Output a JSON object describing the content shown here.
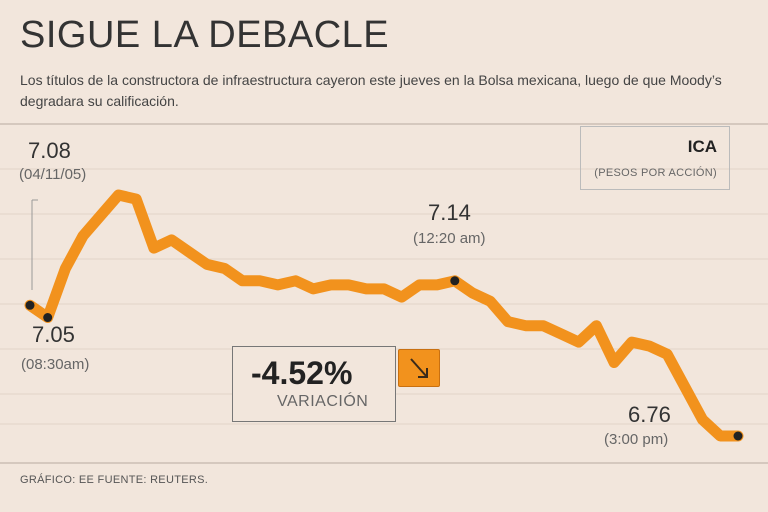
{
  "header": {
    "title": "SIGUE LA DEBACLE",
    "subtitle": "Los títulos de la constructora de infraestructura cayeron este jueves en la Bolsa mexicana, luego de que Moody’s degradara su calificación."
  },
  "legend": {
    "name": "ICA",
    "unit": "(PESOS POR ACCIÓN)"
  },
  "annotations": [
    {
      "value": "7.08",
      "time": "(04/11/05)"
    },
    {
      "value": "7.05",
      "time": "(08:30am)"
    },
    {
      "value": "7.14",
      "time": "(12:20 am)"
    },
    {
      "value": "6.76",
      "time": "(3:00 pm)"
    }
  ],
  "variation": {
    "percent": "-4.52%",
    "label": "VARIACIÓN"
  },
  "footer": "GRÁFICO: EE  FUENTE: REUTERS.",
  "colors": {
    "line": "#f2921d",
    "background": "#f2e6dc",
    "marker": "#222222"
  },
  "chart_data": {
    "type": "line",
    "title": "ICA",
    "ylabel": "(PESOS POR ACCIÓN)",
    "xlabel": "",
    "ylim": [
      6.7,
      7.4
    ],
    "grid": true,
    "series": [
      {
        "name": "ICA",
        "values": [
          7.08,
          7.05,
          7.17,
          7.25,
          7.3,
          7.35,
          7.34,
          7.22,
          7.24,
          7.21,
          7.18,
          7.17,
          7.14,
          7.14,
          7.13,
          7.14,
          7.12,
          7.13,
          7.13,
          7.12,
          7.12,
          7.1,
          7.13,
          7.13,
          7.14,
          7.11,
          7.09,
          7.04,
          7.03,
          7.03,
          7.01,
          6.99,
          7.03,
          6.94,
          6.99,
          6.98,
          6.96,
          6.88,
          6.8,
          6.76,
          6.76
        ]
      }
    ],
    "markers": [
      {
        "index": 0,
        "value": 7.08,
        "label": "7.08",
        "time": "(04/11/05)"
      },
      {
        "index": 1,
        "value": 7.05,
        "label": "7.05",
        "time": "(08:30am)"
      },
      {
        "index": 24,
        "value": 7.14,
        "label": "7.14",
        "time": "(12:20 am)"
      },
      {
        "index": 40,
        "value": 6.76,
        "label": "6.76",
        "time": "(3:00 pm)"
      }
    ]
  }
}
